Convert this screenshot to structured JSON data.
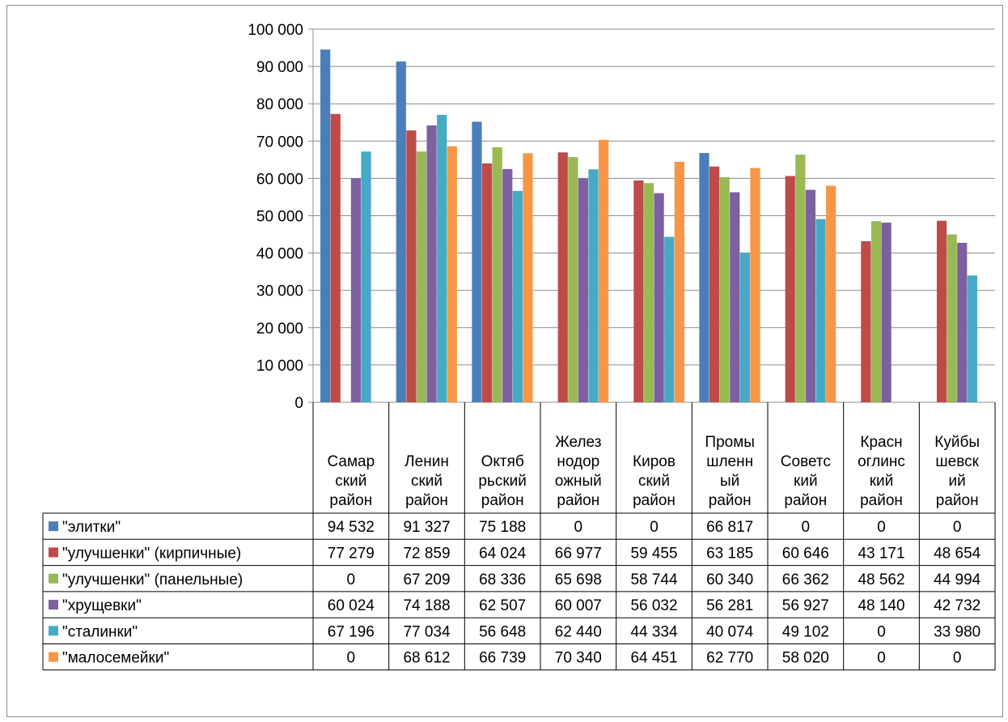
{
  "chart_data": {
    "type": "bar",
    "title": "",
    "xlabel": "",
    "ylabel": "",
    "ylim": [
      0,
      100000
    ],
    "yticks": [
      0,
      10000,
      20000,
      30000,
      40000,
      50000,
      60000,
      70000,
      80000,
      90000,
      100000
    ],
    "ytick_labels": [
      "0",
      "10 000",
      "20 000",
      "30 000",
      "40 000",
      "50 000",
      "60 000",
      "70 000",
      "80 000",
      "90 000",
      "100 000"
    ],
    "grid": true,
    "legend": "data-table-left",
    "categories": [
      [
        "Самар",
        "ский",
        "район"
      ],
      [
        "Ленин",
        "ский",
        "район"
      ],
      [
        "Октяб",
        "рьский",
        "район"
      ],
      [
        "Желез",
        "нодор",
        "ожный",
        "район"
      ],
      [
        "Киров",
        "ский",
        "район"
      ],
      [
        "Промы",
        "шленн",
        "ый",
        "район"
      ],
      [
        "Советс",
        "кий",
        "район"
      ],
      [
        "Красн",
        "оглинс",
        "кий",
        "район"
      ],
      [
        "Куйбы",
        "шевск",
        "ий",
        "район"
      ]
    ],
    "series": [
      {
        "name": "\"элитки\"",
        "color": "#4a7ebb",
        "values": [
          94532,
          91327,
          75188,
          0,
          0,
          66817,
          0,
          0,
          0
        ],
        "labels": [
          "94 532",
          "91 327",
          "75 188",
          "0",
          "0",
          "66 817",
          "0",
          "0",
          "0"
        ]
      },
      {
        "name": "\"улучшенки\" (кирпичные)",
        "color": "#be4b48",
        "values": [
          77279,
          72859,
          64024,
          66977,
          59455,
          63185,
          60646,
          43171,
          48654
        ],
        "labels": [
          "77 279",
          "72 859",
          "64 024",
          "66 977",
          "59 455",
          "63 185",
          "60 646",
          "43 171",
          "48 654"
        ]
      },
      {
        "name": "\"улучшенки\" (панельные)",
        "color": "#98b954",
        "values": [
          0,
          67209,
          68336,
          65698,
          58744,
          60340,
          66362,
          48562,
          44994
        ],
        "labels": [
          "0",
          "67 209",
          "68 336",
          "65 698",
          "58 744",
          "60 340",
          "66 362",
          "48 562",
          "44 994"
        ]
      },
      {
        "name": "\"хрущевки\"",
        "color": "#7d60a0",
        "values": [
          60024,
          74188,
          62507,
          60007,
          56032,
          56281,
          56927,
          48140,
          42732
        ],
        "labels": [
          "60 024",
          "74 188",
          "62 507",
          "60 007",
          "56 032",
          "56 281",
          "56 927",
          "48 140",
          "42 732"
        ]
      },
      {
        "name": "\"сталинки\"",
        "color": "#46aac5",
        "values": [
          67196,
          77034,
          56648,
          62440,
          44334,
          40074,
          49102,
          0,
          33980
        ],
        "labels": [
          "67 196",
          "77 034",
          "56 648",
          "62 440",
          "44 334",
          "40 074",
          "49 102",
          "0",
          "33 980"
        ]
      },
      {
        "name": "\"малосемейки\"",
        "color": "#f79646",
        "values": [
          0,
          68612,
          66739,
          70340,
          64451,
          62770,
          58020,
          0,
          0
        ],
        "labels": [
          "0",
          "68 612",
          "66 739",
          "70 340",
          "64 451",
          "62 770",
          "58 020",
          "0",
          "0"
        ]
      }
    ]
  }
}
